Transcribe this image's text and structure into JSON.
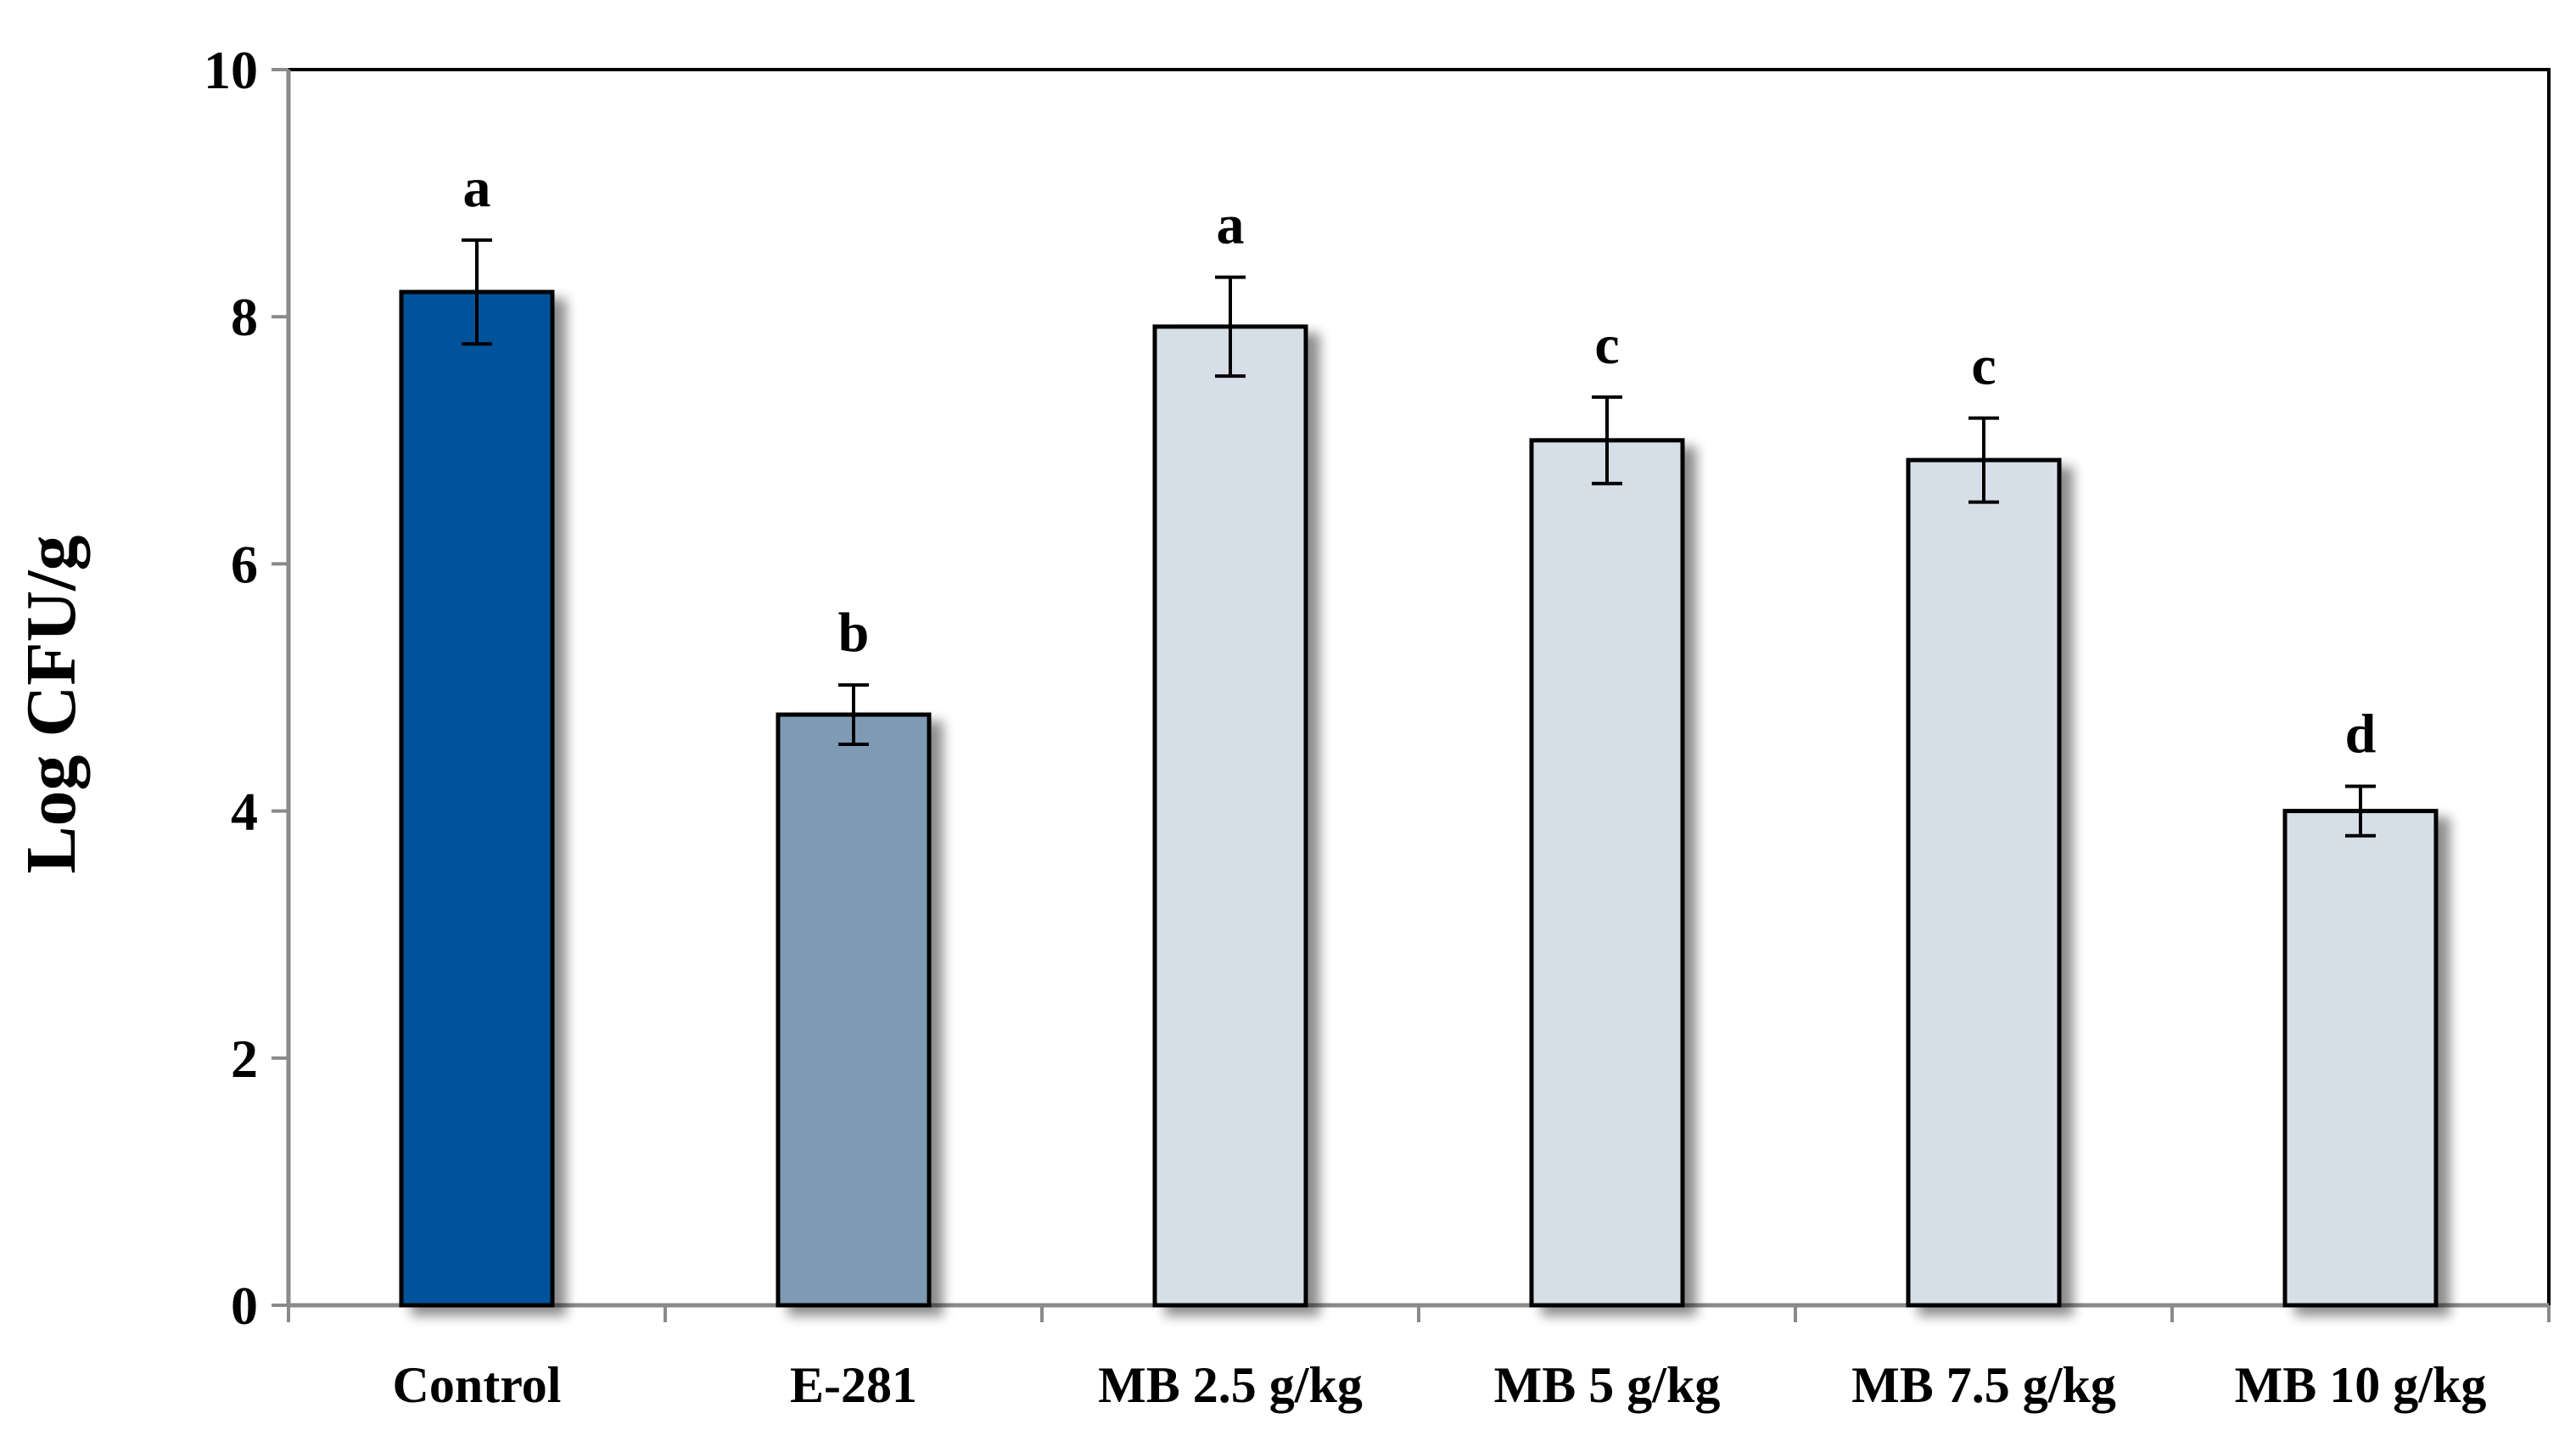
{
  "chart_data": {
    "type": "bar",
    "title": "",
    "xlabel": "",
    "ylabel": "Log CFU/g",
    "ylim": [
      0,
      10
    ],
    "yticks": [
      0,
      2,
      4,
      6,
      8,
      10
    ],
    "grid": false,
    "legend": "none",
    "categories": [
      "Control",
      "E-281",
      "MB 2.5 g/kg",
      "MB 5 g/kg",
      "MB 7.5 g/kg",
      "MB 10 g/kg"
    ],
    "values": [
      8.2,
      4.78,
      7.92,
      7.0,
      6.84,
      4.0
    ],
    "errors": [
      0.42,
      0.24,
      0.4,
      0.35,
      0.34,
      0.2
    ],
    "significance": [
      "a",
      "b",
      "a",
      "c",
      "c",
      "d"
    ],
    "bar_colors": [
      "#00529b",
      "#7f9ab5",
      "#d6dee7",
      "#d6dee7",
      "#d6dee7",
      "#d6dee7"
    ]
  }
}
